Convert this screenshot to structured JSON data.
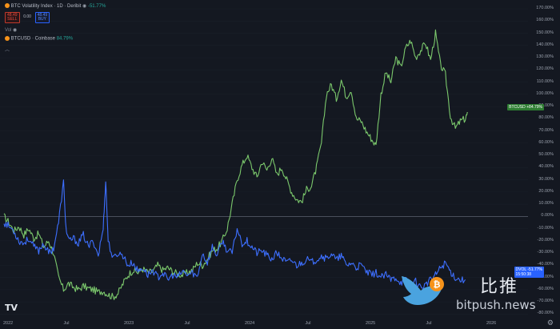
{
  "header": {
    "title": "BTC Volatility Index · 1D · Deribit",
    "change": "-51.77%",
    "sell_value": "48.49",
    "sell_label": "SELL",
    "spread": "0.00",
    "buy_value": "48.49",
    "buy_label": "BUY",
    "vol_label": "Vol",
    "compare_symbol": "BTCUSD · Coinbase",
    "compare_change": "84.79%"
  },
  "colors": {
    "background": "#141821",
    "btc_line": "#7bc86c",
    "dvol_line": "#3d6fff",
    "zero_line": "#6b7080"
  },
  "axis": {
    "y_labels": [
      "170.00%",
      "160.00%",
      "150.00%",
      "140.00%",
      "130.00%",
      "120.00%",
      "110.00%",
      "100.00%",
      "90.00%",
      "80.00%",
      "70.00%",
      "60.00%",
      "50.00%",
      "40.00%",
      "30.00%",
      "20.00%",
      "10.00%",
      "0.00%",
      "-10.00%",
      "-20.00%",
      "-30.00%",
      "-40.00%",
      "-50.00%",
      "-60.00%",
      "-70.00%",
      "-80.00%"
    ],
    "x_labels": [
      "2022",
      "Jul",
      "2023",
      "Jul",
      "2024",
      "Jul",
      "2025",
      "Jul",
      "2026"
    ]
  },
  "tags": {
    "btc": "BTCUSD +84.79%",
    "dvol_name": "DVOL",
    "dvol_value": "-51.77%",
    "dvol_time": "15:50:38"
  },
  "watermark": {
    "cn": "比推",
    "url": "bitpush.news"
  },
  "logo": {
    "text": "TV"
  },
  "icons": {
    "gear": "gear-icon",
    "bird": "bird-logo-icon",
    "bitcoin": "bitcoin-icon",
    "eye": "eye-icon"
  },
  "chart_data": {
    "type": "line",
    "x_range": [
      "2022-01-01",
      "2026-01-01"
    ],
    "ylim": [
      -85,
      172
    ],
    "series": [
      {
        "name": "BTCUSD · Coinbase",
        "points": [
          [
            0,
            0
          ],
          [
            0.01,
            -5
          ],
          [
            0.02,
            -12
          ],
          [
            0.03,
            -8
          ],
          [
            0.04,
            -15
          ],
          [
            0.05,
            -10
          ],
          [
            0.06,
            -18
          ],
          [
            0.07,
            -14
          ],
          [
            0.08,
            -25
          ],
          [
            0.09,
            -20
          ],
          [
            0.1,
            -30
          ],
          [
            0.11,
            -50
          ],
          [
            0.12,
            -60
          ],
          [
            0.13,
            -55
          ],
          [
            0.14,
            -58
          ],
          [
            0.15,
            -60
          ],
          [
            0.16,
            -57
          ],
          [
            0.17,
            -59
          ],
          [
            0.18,
            -60
          ],
          [
            0.19,
            -62
          ],
          [
            0.2,
            -61
          ],
          [
            0.21,
            -64
          ],
          [
            0.22,
            -66
          ],
          [
            0.23,
            -63
          ],
          [
            0.24,
            -55
          ],
          [
            0.25,
            -48
          ],
          [
            0.26,
            -44
          ],
          [
            0.27,
            -46
          ],
          [
            0.28,
            -43
          ],
          [
            0.29,
            -46
          ],
          [
            0.3,
            -45
          ],
          [
            0.31,
            -40
          ],
          [
            0.32,
            -44
          ],
          [
            0.33,
            -42
          ],
          [
            0.34,
            -45
          ],
          [
            0.35,
            -47
          ],
          [
            0.36,
            -48
          ],
          [
            0.37,
            -46
          ],
          [
            0.38,
            -44
          ],
          [
            0.39,
            -38
          ],
          [
            0.4,
            -40
          ],
          [
            0.41,
            -35
          ],
          [
            0.42,
            -28
          ],
          [
            0.43,
            -26
          ],
          [
            0.44,
            -20
          ],
          [
            0.45,
            -10
          ],
          [
            0.46,
            10
          ],
          [
            0.47,
            30
          ],
          [
            0.48,
            42
          ],
          [
            0.49,
            50
          ],
          [
            0.5,
            40
          ],
          [
            0.51,
            32
          ],
          [
            0.52,
            45
          ],
          [
            0.53,
            38
          ],
          [
            0.54,
            48
          ],
          [
            0.55,
            34
          ],
          [
            0.56,
            40
          ],
          [
            0.57,
            30
          ],
          [
            0.58,
            20
          ],
          [
            0.59,
            14
          ],
          [
            0.6,
            12
          ],
          [
            0.61,
            22
          ],
          [
            0.62,
            25
          ],
          [
            0.63,
            40
          ],
          [
            0.64,
            60
          ],
          [
            0.65,
            100
          ],
          [
            0.66,
            108
          ],
          [
            0.67,
            96
          ],
          [
            0.68,
            112
          ],
          [
            0.69,
            98
          ],
          [
            0.7,
            104
          ],
          [
            0.71,
            80
          ],
          [
            0.72,
            78
          ],
          [
            0.73,
            70
          ],
          [
            0.74,
            64
          ],
          [
            0.75,
            58
          ],
          [
            0.76,
            100
          ],
          [
            0.77,
            118
          ],
          [
            0.78,
            110
          ],
          [
            0.79,
            130
          ],
          [
            0.8,
            122
          ],
          [
            0.81,
            138
          ],
          [
            0.82,
            144
          ],
          [
            0.83,
            130
          ],
          [
            0.84,
            136
          ],
          [
            0.85,
            142
          ],
          [
            0.86,
            128
          ],
          [
            0.87,
            150
          ],
          [
            0.88,
            124
          ],
          [
            0.89,
            116
          ],
          [
            0.9,
            82
          ],
          [
            0.91,
            72
          ],
          [
            0.92,
            78
          ],
          [
            0.93,
            80
          ],
          [
            0.935,
            84.79
          ]
        ]
      },
      {
        "name": "DVOL",
        "points": [
          [
            0,
            -5
          ],
          [
            0.01,
            -8
          ],
          [
            0.02,
            -12
          ],
          [
            0.03,
            -20
          ],
          [
            0.04,
            -22
          ],
          [
            0.05,
            -18
          ],
          [
            0.06,
            -25
          ],
          [
            0.07,
            -28
          ],
          [
            0.08,
            -22
          ],
          [
            0.09,
            -30
          ],
          [
            0.1,
            -26
          ],
          [
            0.11,
            -5
          ],
          [
            0.12,
            28
          ],
          [
            0.125,
            -10
          ],
          [
            0.13,
            -20
          ],
          [
            0.14,
            -18
          ],
          [
            0.15,
            -22
          ],
          [
            0.16,
            -15
          ],
          [
            0.17,
            -25
          ],
          [
            0.18,
            -20
          ],
          [
            0.19,
            -32
          ],
          [
            0.2,
            -10
          ],
          [
            0.205,
            30
          ],
          [
            0.21,
            -20
          ],
          [
            0.22,
            -35
          ],
          [
            0.23,
            -30
          ],
          [
            0.24,
            -32
          ],
          [
            0.25,
            -40
          ],
          [
            0.26,
            -38
          ],
          [
            0.27,
            -45
          ],
          [
            0.28,
            -42
          ],
          [
            0.29,
            -48
          ],
          [
            0.3,
            -44
          ],
          [
            0.31,
            -50
          ],
          [
            0.32,
            -46
          ],
          [
            0.33,
            -52
          ],
          [
            0.34,
            -48
          ],
          [
            0.35,
            -50
          ],
          [
            0.36,
            -45
          ],
          [
            0.37,
            -48
          ],
          [
            0.38,
            -46
          ],
          [
            0.39,
            -50
          ],
          [
            0.4,
            -30
          ],
          [
            0.41,
            -38
          ],
          [
            0.42,
            -25
          ],
          [
            0.43,
            -32
          ],
          [
            0.44,
            -20
          ],
          [
            0.45,
            -28
          ],
          [
            0.46,
            -30
          ],
          [
            0.47,
            -10
          ],
          [
            0.48,
            -22
          ],
          [
            0.49,
            -20
          ],
          [
            0.5,
            -25
          ],
          [
            0.51,
            -30
          ],
          [
            0.52,
            -28
          ],
          [
            0.53,
            -32
          ],
          [
            0.54,
            -35
          ],
          [
            0.55,
            -30
          ],
          [
            0.56,
            -34
          ],
          [
            0.57,
            -38
          ],
          [
            0.58,
            -36
          ],
          [
            0.59,
            -40
          ],
          [
            0.6,
            -38
          ],
          [
            0.61,
            -35
          ],
          [
            0.62,
            -38
          ],
          [
            0.63,
            -35
          ],
          [
            0.64,
            -32
          ],
          [
            0.65,
            -35
          ],
          [
            0.66,
            -30
          ],
          [
            0.67,
            -36
          ],
          [
            0.68,
            -32
          ],
          [
            0.69,
            -40
          ],
          [
            0.7,
            -38
          ],
          [
            0.71,
            -42
          ],
          [
            0.72,
            -40
          ],
          [
            0.73,
            -45
          ],
          [
            0.74,
            -48
          ],
          [
            0.75,
            -46
          ],
          [
            0.76,
            -50
          ],
          [
            0.77,
            -48
          ],
          [
            0.78,
            -52
          ],
          [
            0.79,
            -50
          ],
          [
            0.8,
            -54
          ],
          [
            0.81,
            -52
          ],
          [
            0.82,
            -55
          ],
          [
            0.83,
            -53
          ],
          [
            0.84,
            -58
          ],
          [
            0.85,
            -56
          ],
          [
            0.86,
            -52
          ],
          [
            0.87,
            -48
          ],
          [
            0.88,
            -42
          ],
          [
            0.89,
            -38
          ],
          [
            0.9,
            -45
          ],
          [
            0.91,
            -50
          ],
          [
            0.92,
            -52
          ],
          [
            0.93,
            -51.77
          ]
        ]
      }
    ]
  }
}
